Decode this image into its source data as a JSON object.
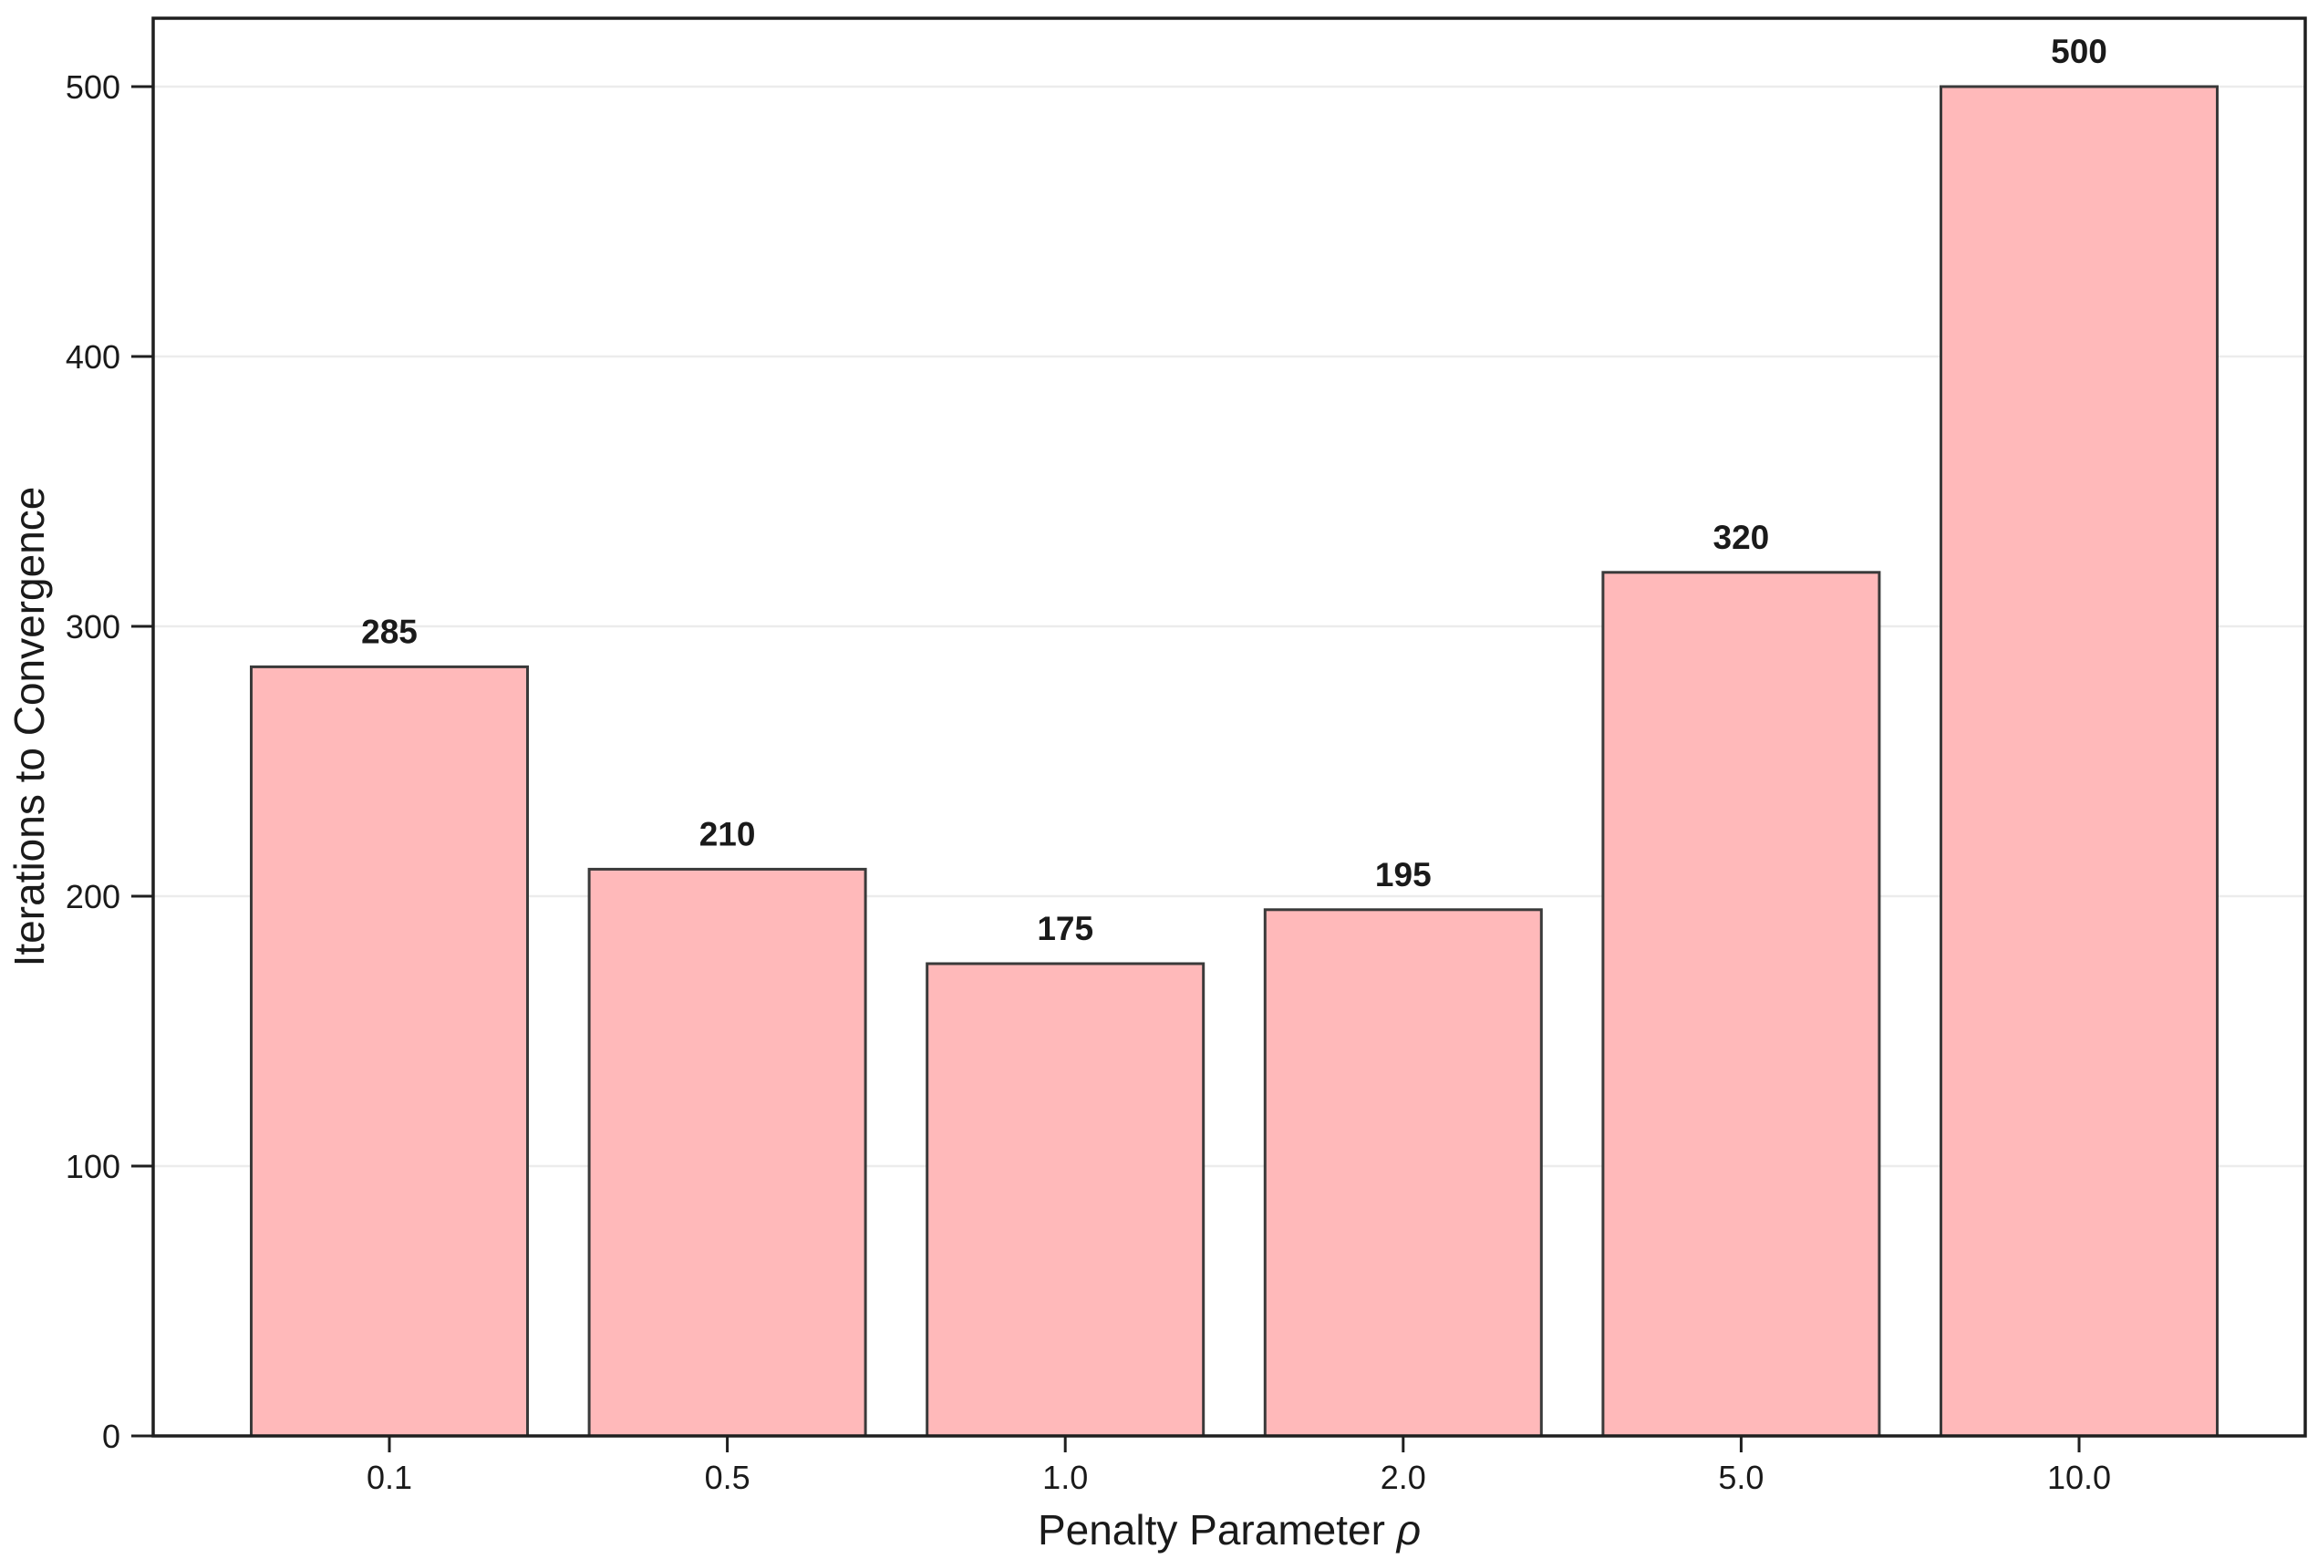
{
  "figure": {
    "background": "#ffffff",
    "xlabel_prefix": "Penalty Parameter ",
    "xlabel_symbol": "ρ",
    "ylabel": "Iterations to Convergence"
  },
  "chart_data": {
    "type": "bar",
    "title": "",
    "xlabel": "Penalty Parameter ρ",
    "ylabel": "Iterations to Convergence",
    "categories": [
      "0.1",
      "0.5",
      "1.0",
      "2.0",
      "5.0",
      "10.0"
    ],
    "values": [
      285,
      210,
      175,
      195,
      320,
      500
    ],
    "bar_labels": [
      "285",
      "210",
      "175",
      "195",
      "320",
      "500"
    ],
    "yticks": [
      0,
      100,
      200,
      300,
      400,
      500
    ],
    "ylim": [
      0,
      525
    ],
    "grid": "horizontal",
    "legend": "none",
    "colors": {
      "bar_fill": "#ffb9ba",
      "bar_edge": "#3a3a3a",
      "grid_line": "#ececec",
      "frame": "#1f1f1f",
      "text": "#1a1a1a"
    }
  }
}
